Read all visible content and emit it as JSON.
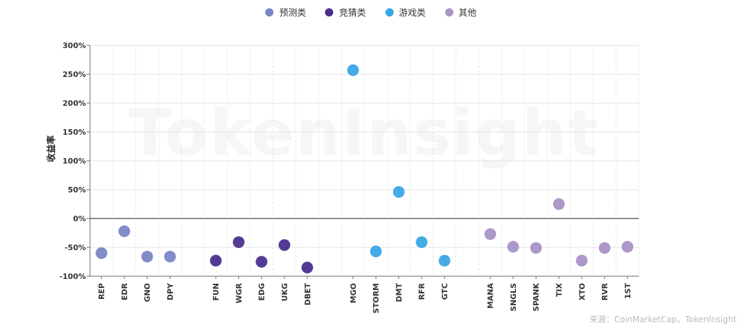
{
  "legend": [
    {
      "label": "预测类",
      "color": "#7b86c8"
    },
    {
      "label": "竞猜类",
      "color": "#4a2f8f"
    },
    {
      "label": "游戏类",
      "color": "#3aa6e6"
    },
    {
      "label": "其他",
      "color": "#a894c6"
    }
  ],
  "watermark": "TokenInsight",
  "source_note": "来源：CoinMarketCap，TokenInsight",
  "chart_data": {
    "type": "scatter",
    "title": "",
    "xlabel": "",
    "ylabel": "收益率",
    "ylim": [
      -100,
      300
    ],
    "yticks": [
      "-100%",
      "-50%",
      "0%",
      "50%",
      "100%",
      "150%",
      "200%",
      "250%",
      "300%"
    ],
    "grid": true,
    "legend_position": "top-center",
    "categories": [
      "REP",
      "EDR",
      "GNO",
      "DPY",
      "",
      "FUN",
      "WGR",
      "EDG",
      "UKG",
      "DBET",
      "",
      "MGO",
      "STORM",
      "DMT",
      "RFR",
      "GTC",
      "",
      "MANA",
      "SNGLS",
      "SPANK",
      "TIX",
      "XTO",
      "RVR",
      "1ST"
    ],
    "series": [
      {
        "name": "预测类",
        "color": "#7b86c8",
        "points": [
          {
            "x": "REP",
            "y": -60
          },
          {
            "x": "EDR",
            "y": -22
          },
          {
            "x": "GNO",
            "y": -66
          },
          {
            "x": "DPY",
            "y": -66
          }
        ]
      },
      {
        "name": "竞猜类",
        "color": "#4a2f8f",
        "points": [
          {
            "x": "FUN",
            "y": -73
          },
          {
            "x": "WGR",
            "y": -41
          },
          {
            "x": "EDG",
            "y": -75
          },
          {
            "x": "UKG",
            "y": -46
          },
          {
            "x": "DBET",
            "y": -85
          }
        ]
      },
      {
        "name": "游戏类",
        "color": "#3aa6e6",
        "points": [
          {
            "x": "MGO",
            "y": 257
          },
          {
            "x": "STORM",
            "y": -57
          },
          {
            "x": "DMT",
            "y": 46
          },
          {
            "x": "RFR",
            "y": -41
          },
          {
            "x": "GTC",
            "y": -73
          }
        ]
      },
      {
        "name": "其他",
        "color": "#a894c6",
        "points": [
          {
            "x": "MANA",
            "y": -27
          },
          {
            "x": "SNGLS",
            "y": -49
          },
          {
            "x": "SPANK",
            "y": -51
          },
          {
            "x": "TIX",
            "y": 25
          },
          {
            "x": "XTO",
            "y": -73
          },
          {
            "x": "RVR",
            "y": -51
          },
          {
            "x": "1ST",
            "y": -49
          }
        ]
      }
    ]
  }
}
